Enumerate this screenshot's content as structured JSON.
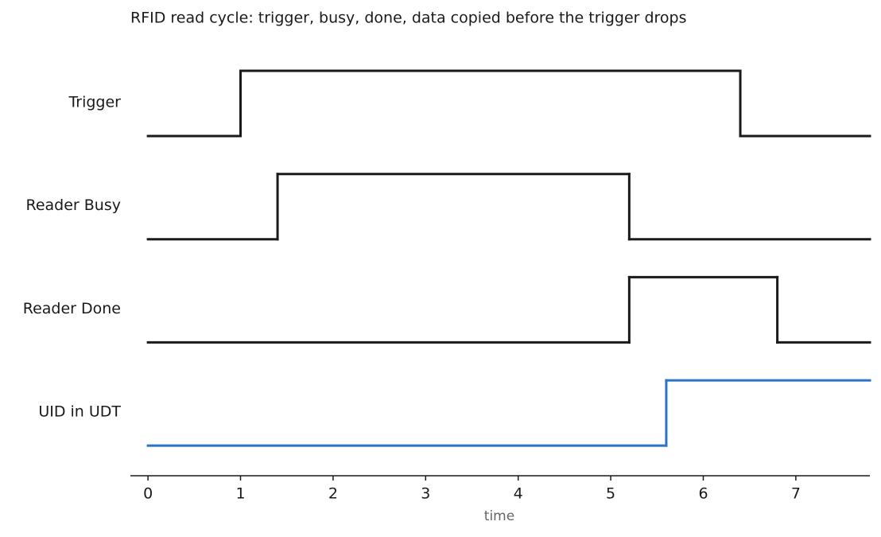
{
  "chart_data": {
    "type": "step",
    "title": "RFID read cycle: trigger, busy, done, data copied before the trigger drops",
    "xlabel": "time",
    "xlim": [
      -0.19,
      7.8
    ],
    "xticks": [
      0,
      1,
      2,
      3,
      4,
      5,
      6,
      7
    ],
    "ylim": [
      0,
      1
    ],
    "series": [
      {
        "name": "Trigger",
        "color": "#1a1a1a",
        "edges": [
          0,
          1,
          6.4,
          7.8
        ],
        "values": [
          0,
          1,
          0
        ]
      },
      {
        "name": "Reader Busy",
        "color": "#1a1a1a",
        "edges": [
          0,
          1.4,
          5.2,
          7.8
        ],
        "values": [
          0,
          1,
          0
        ]
      },
      {
        "name": "Reader Done",
        "color": "#1a1a1a",
        "edges": [
          0,
          5.2,
          6.8,
          7.8
        ],
        "values": [
          0,
          1,
          0
        ]
      },
      {
        "name": "UID in UDT",
        "color": "#2a74c8",
        "edges": [
          0,
          5.6,
          7.8
        ],
        "values": [
          0,
          1
        ]
      }
    ]
  }
}
